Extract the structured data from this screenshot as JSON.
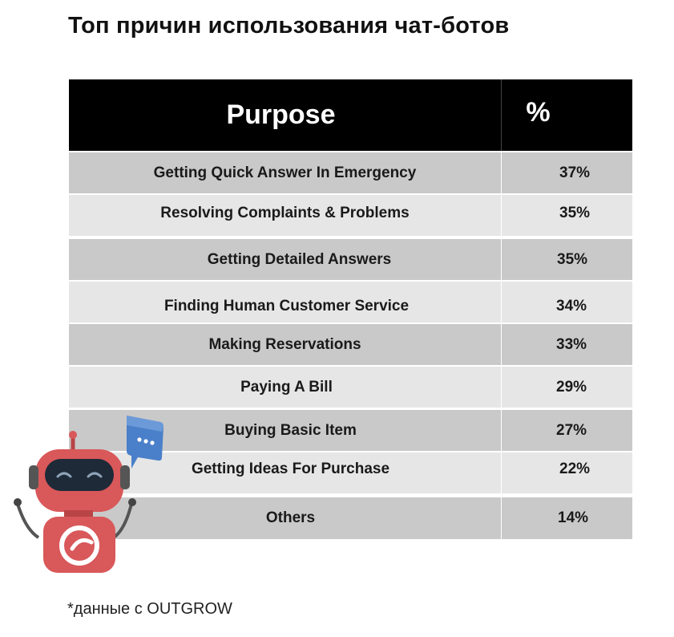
{
  "title": "Топ причин использования чат-ботов",
  "chart_data": {
    "type": "table",
    "columns": [
      "Purpose",
      "%"
    ],
    "rows": [
      {
        "purpose": "Getting Quick Answer In Emergency",
        "value": "37%"
      },
      {
        "purpose": "Resolving Complaints & Problems",
        "value": "35%"
      },
      {
        "purpose": "Getting Detailed Answers",
        "value": "35%"
      },
      {
        "purpose": "Finding Human Customer Service",
        "value": "34%"
      },
      {
        "purpose": "Making Reservations",
        "value": "33%"
      },
      {
        "purpose": "Paying A Bill",
        "value": "29%"
      },
      {
        "purpose": "Buying Basic Item",
        "value": "27%"
      },
      {
        "purpose": "Getting Ideas For Purchase",
        "value": "22%"
      },
      {
        "purpose": "Others",
        "value": "14%"
      }
    ]
  },
  "footnote": "*данные с OUTGROW",
  "colors": {
    "header_bg": "#000000",
    "row_dark": "#c9c9c9",
    "row_light": "#e6e6e6",
    "robot_red": "#d9585a",
    "bubble_blue": "#4a7fc9"
  },
  "icons": {
    "robot": "chatbot-robot-icon",
    "bubble": "chat-bubble-icon"
  }
}
